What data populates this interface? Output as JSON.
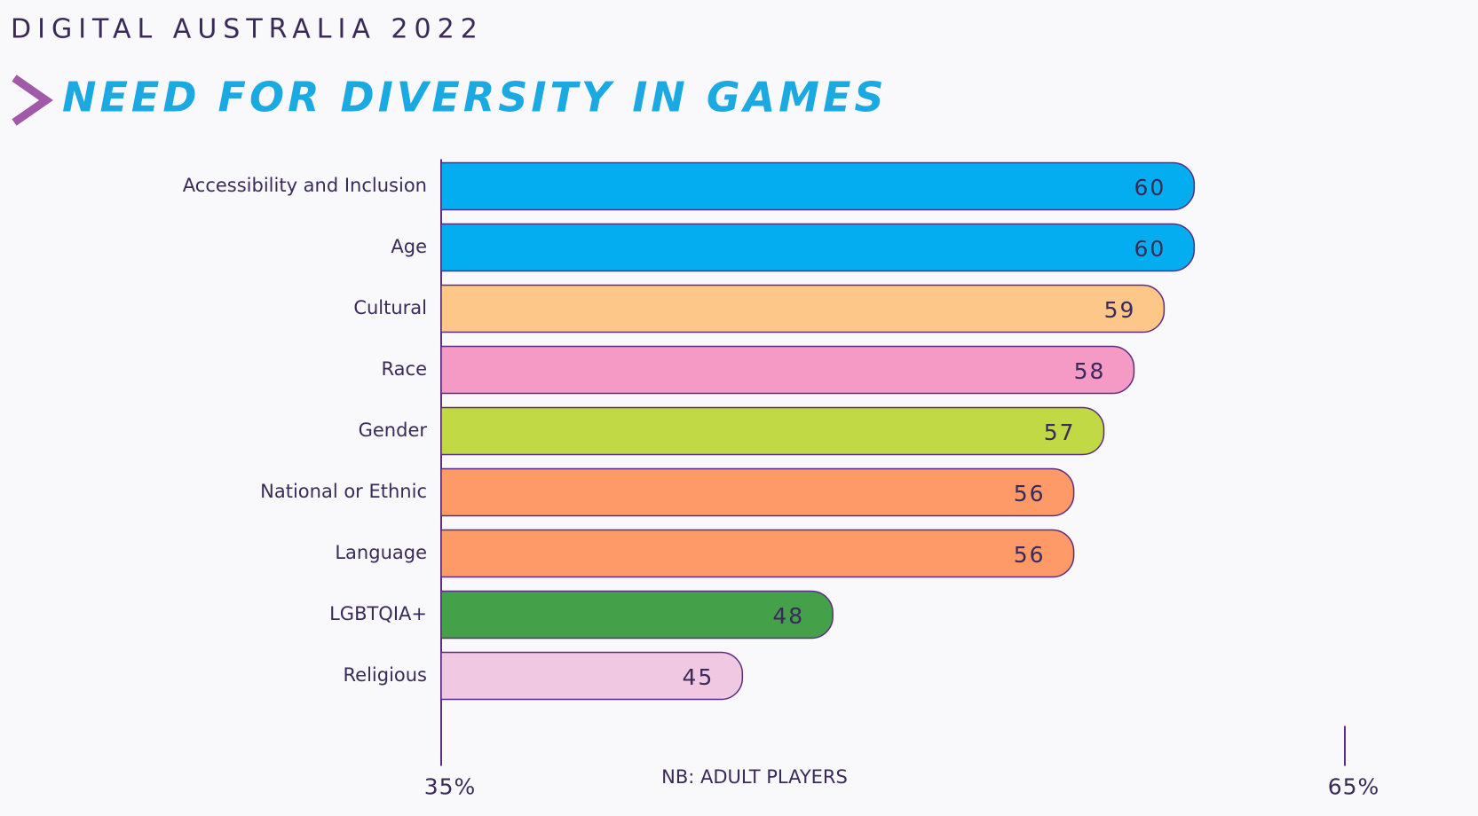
{
  "chart_data": {
    "type": "bar",
    "orientation": "horizontal",
    "header": "DIGITAL AUSTRALIA 2022",
    "title": "NEED FOR DIVERSITY IN GAMES",
    "note": "NB: ADULT PLAYERS",
    "categories": [
      "Accessibility and Inclusion",
      "Age",
      "Cultural",
      "Race",
      "Gender",
      "National or Ethnic",
      "Language",
      "LGBTQIA+",
      "Religious"
    ],
    "values": [
      60,
      60,
      59,
      58,
      57,
      56,
      56,
      48,
      45
    ],
    "colors": [
      "#03adef",
      "#03adef",
      "#fec78a",
      "#f49ac4",
      "#c1d945",
      "#fe9a68",
      "#fe9a68",
      "#45a04a",
      "#f1c8e2"
    ],
    "xlim": [
      35,
      65
    ],
    "xticks": [
      {
        "value": 35,
        "label": "35%"
      },
      {
        "value": 65,
        "label": "65%"
      }
    ]
  }
}
